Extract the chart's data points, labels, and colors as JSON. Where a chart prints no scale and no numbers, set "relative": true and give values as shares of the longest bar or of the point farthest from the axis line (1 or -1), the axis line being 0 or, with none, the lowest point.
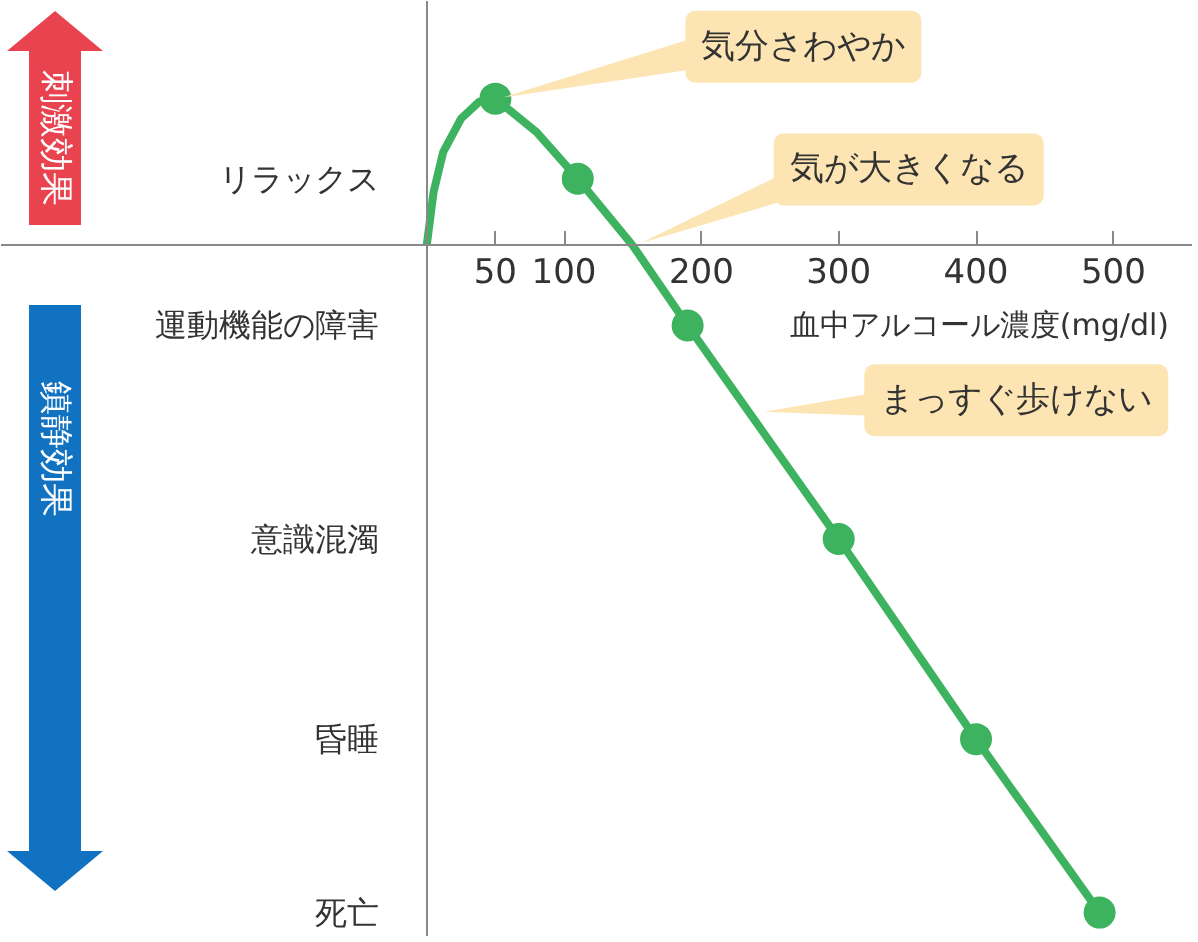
{
  "chart_data": {
    "type": "line",
    "relative": true,
    "xlabel": "血中アルコール濃度(mg/dl)",
    "xlim": [
      -310,
      558
    ],
    "xticks": [
      50,
      100,
      200,
      300,
      400,
      500
    ],
    "series": [
      {
        "color": "#3db25f",
        "marker": "none",
        "x": [
          0,
          5,
          12,
          25,
          38,
          50,
          80,
          110,
          150,
          190,
          300,
          400,
          490
        ],
        "values": [
          0,
          0.08,
          0.14,
          0.19,
          0.215,
          0.22,
          0.17,
          0.1,
          0.0,
          -0.12,
          -0.44,
          -0.74,
          -1
        ]
      },
      {
        "type": "scatter",
        "color": "#3db25f",
        "marker": "circle",
        "x": [
          50,
          110,
          190,
          300,
          400,
          490
        ],
        "values": [
          0.22,
          0.1,
          -0.12,
          -0.44,
          -0.74,
          -1
        ]
      }
    ],
    "annotations": [
      {
        "text": "気分さわやか",
        "x": 50,
        "y": 0.22
      },
      {
        "text": "気が大きくなる",
        "x": 150,
        "y": 0
      },
      {
        "text": "まっすぐ歩けない",
        "x": 240,
        "y": -0.25
      },
      "リラックス",
      "運動機能の障害",
      "意識混濁",
      "昏睡",
      "死亡",
      "刺激効果",
      "鎮静効果"
    ],
    "grid": false
  }
}
